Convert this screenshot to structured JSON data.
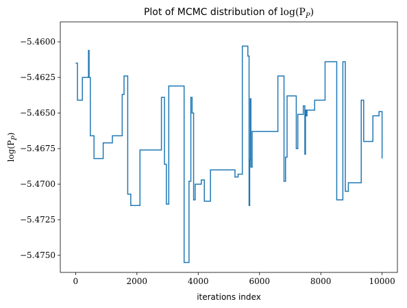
{
  "chart_data": {
    "type": "line",
    "title": "Plot of MCMC distribution of log(P_P)",
    "title_prefix": "Plot of MCMC distribution of ",
    "title_math": "log(P",
    "title_math_sub": "P",
    "title_math_close": ")",
    "xlabel": "iterations index",
    "ylabel": "log(P_P)",
    "ylabel_math": "log(P",
    "ylabel_math_sub": "P",
    "ylabel_math_close": ")",
    "xlim": [
      -500,
      10500
    ],
    "ylim": [
      -5.4762,
      -5.4586
    ],
    "xticks": [
      0,
      2000,
      4000,
      6000,
      8000,
      10000
    ],
    "xtick_labels": [
      "0",
      "2000",
      "4000",
      "6000",
      "8000",
      "10000"
    ],
    "yticks": [
      -5.46,
      -5.4625,
      -5.465,
      -5.4675,
      -5.47,
      -5.4725,
      -5.475
    ],
    "ytick_labels": [
      "−5.4600",
      "−5.4625",
      "−5.4650",
      "−5.4675",
      "−5.4700",
      "−5.4725",
      "−5.4750"
    ],
    "grid": false,
    "line_color": "#1f77b4",
    "series": [
      {
        "step": true,
        "x": [
          0,
          60,
          220,
          420,
          440,
          480,
          600,
          900,
          1200,
          1520,
          1580,
          1700,
          1800,
          2100,
          2800,
          2900,
          2960,
          3040,
          3200,
          3540,
          3700,
          3760,
          3800,
          3850,
          3900,
          4100,
          4200,
          4400,
          5200,
          5300,
          5440,
          5620,
          5660,
          5680,
          5700,
          5720,
          5760,
          5800,
          6600,
          6800,
          6850,
          6900,
          7200,
          7250,
          7430,
          7480,
          7500,
          7520,
          7550,
          7800,
          8140,
          8520,
          8720,
          8800,
          8900,
          9200,
          9320,
          9400,
          9700,
          9900,
          10000
        ],
        "y": [
          -5.4615,
          -5.4641,
          -5.4625,
          -5.4606,
          -5.4625,
          -5.4666,
          -5.4682,
          -5.4671,
          -5.4666,
          -5.4637,
          -5.4624,
          -5.4707,
          -5.4715,
          -5.4676,
          -5.4639,
          -5.4686,
          -5.4714,
          -5.4631,
          -5.4631,
          -5.4755,
          -5.4698,
          -5.4639,
          -5.465,
          -5.4711,
          -5.47,
          -5.4697,
          -5.4712,
          -5.469,
          -5.4695,
          -5.4693,
          -5.4603,
          -5.461,
          -5.4715,
          -5.4683,
          -5.464,
          -5.4688,
          -5.4663,
          -5.4663,
          -5.4624,
          -5.4698,
          -5.4681,
          -5.4638,
          -5.4675,
          -5.4651,
          -5.4645,
          -5.4679,
          -5.4648,
          -5.4652,
          -5.4648,
          -5.4641,
          -5.4614,
          -5.4711,
          -5.4614,
          -5.4705,
          -5.4699,
          -5.4699,
          -5.4641,
          -5.467,
          -5.4652,
          -5.4649,
          -5.4682
        ]
      }
    ]
  }
}
